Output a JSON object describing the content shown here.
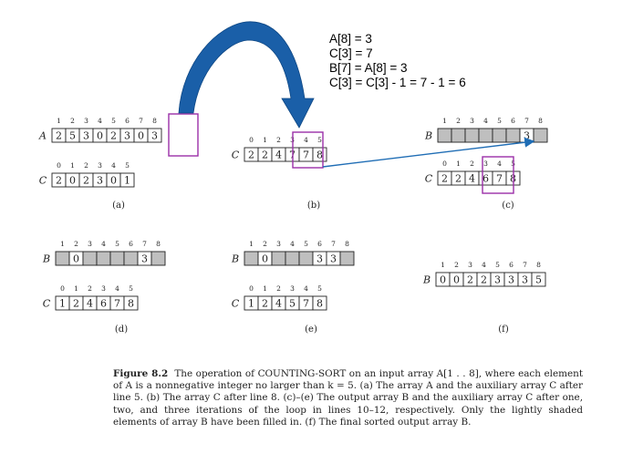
{
  "annotation": {
    "lines": [
      "A[8] = 3",
      "C[3] = 7",
      "B[7] = A[8] = 3",
      "C[3] = C[3] - 1 = 7 - 1 = 6"
    ],
    "color": "#000000"
  },
  "colors": {
    "highlight": "#9b2fa8",
    "arrow": "#1f6db5",
    "shaded": "#bfbfbf",
    "cell_border": "#222222"
  },
  "panels": {
    "a": {
      "label": "(a)",
      "A": {
        "name": "A",
        "indices": [
          "1",
          "2",
          "3",
          "4",
          "5",
          "6",
          "7",
          "8"
        ],
        "values": [
          "2",
          "5",
          "3",
          "0",
          "2",
          "3",
          "0",
          "3"
        ]
      },
      "C": {
        "name": "C",
        "indices": [
          "0",
          "1",
          "2",
          "3",
          "4",
          "5"
        ],
        "values": [
          "2",
          "0",
          "2",
          "3",
          "0",
          "1"
        ]
      }
    },
    "b": {
      "label": "(b)",
      "C": {
        "name": "C",
        "indices": [
          "0",
          "1",
          "2",
          "3",
          "4",
          "5"
        ],
        "values": [
          "2",
          "2",
          "4",
          "7",
          "7",
          "8"
        ]
      }
    },
    "c": {
      "label": "(c)",
      "B": {
        "name": "B",
        "indices": [
          "1",
          "2",
          "3",
          "4",
          "5",
          "6",
          "7",
          "8"
        ],
        "values": [
          "",
          "",
          "",
          "",
          "",
          "",
          "3",
          ""
        ]
      },
      "C": {
        "name": "C",
        "indices": [
          "0",
          "1",
          "2",
          "3",
          "4",
          "5"
        ],
        "values": [
          "2",
          "2",
          "4",
          "6",
          "7",
          "8"
        ]
      }
    },
    "d": {
      "label": "(d)",
      "B": {
        "name": "B",
        "indices": [
          "1",
          "2",
          "3",
          "4",
          "5",
          "6",
          "7",
          "8"
        ],
        "values": [
          "",
          "0",
          "",
          "",
          "",
          "",
          "3",
          ""
        ]
      },
      "C": {
        "name": "C",
        "indices": [
          "0",
          "1",
          "2",
          "3",
          "4",
          "5"
        ],
        "values": [
          "1",
          "2",
          "4",
          "6",
          "7",
          "8"
        ]
      }
    },
    "e": {
      "label": "(e)",
      "B": {
        "name": "B",
        "indices": [
          "1",
          "2",
          "3",
          "4",
          "5",
          "6",
          "7",
          "8"
        ],
        "values": [
          "",
          "0",
          "",
          "",
          "",
          "3",
          "3",
          ""
        ]
      },
      "C": {
        "name": "C",
        "indices": [
          "0",
          "1",
          "2",
          "3",
          "4",
          "5"
        ],
        "values": [
          "1",
          "2",
          "4",
          "5",
          "7",
          "8"
        ]
      }
    },
    "f": {
      "label": "(f)",
      "B": {
        "name": "B",
        "indices": [
          "1",
          "2",
          "3",
          "4",
          "5",
          "6",
          "7",
          "8"
        ],
        "values": [
          "0",
          "0",
          "2",
          "2",
          "3",
          "3",
          "3",
          "5"
        ]
      }
    }
  },
  "caption": {
    "label": "Figure 8.2",
    "text": "The operation of COUNTING-SORT on an input array A[1 . . 8], where each element of A is a nonnegative integer no larger than k = 5. (a) The array A and the auxiliary array C after line 5. (b) The array C after line 8. (c)–(e) The output array B and the auxiliary array C after one, two, and three iterations of the loop in lines 10–12, respectively. Only the lightly shaded elements of array B have been filled in. (f) The final sorted output array B."
  }
}
